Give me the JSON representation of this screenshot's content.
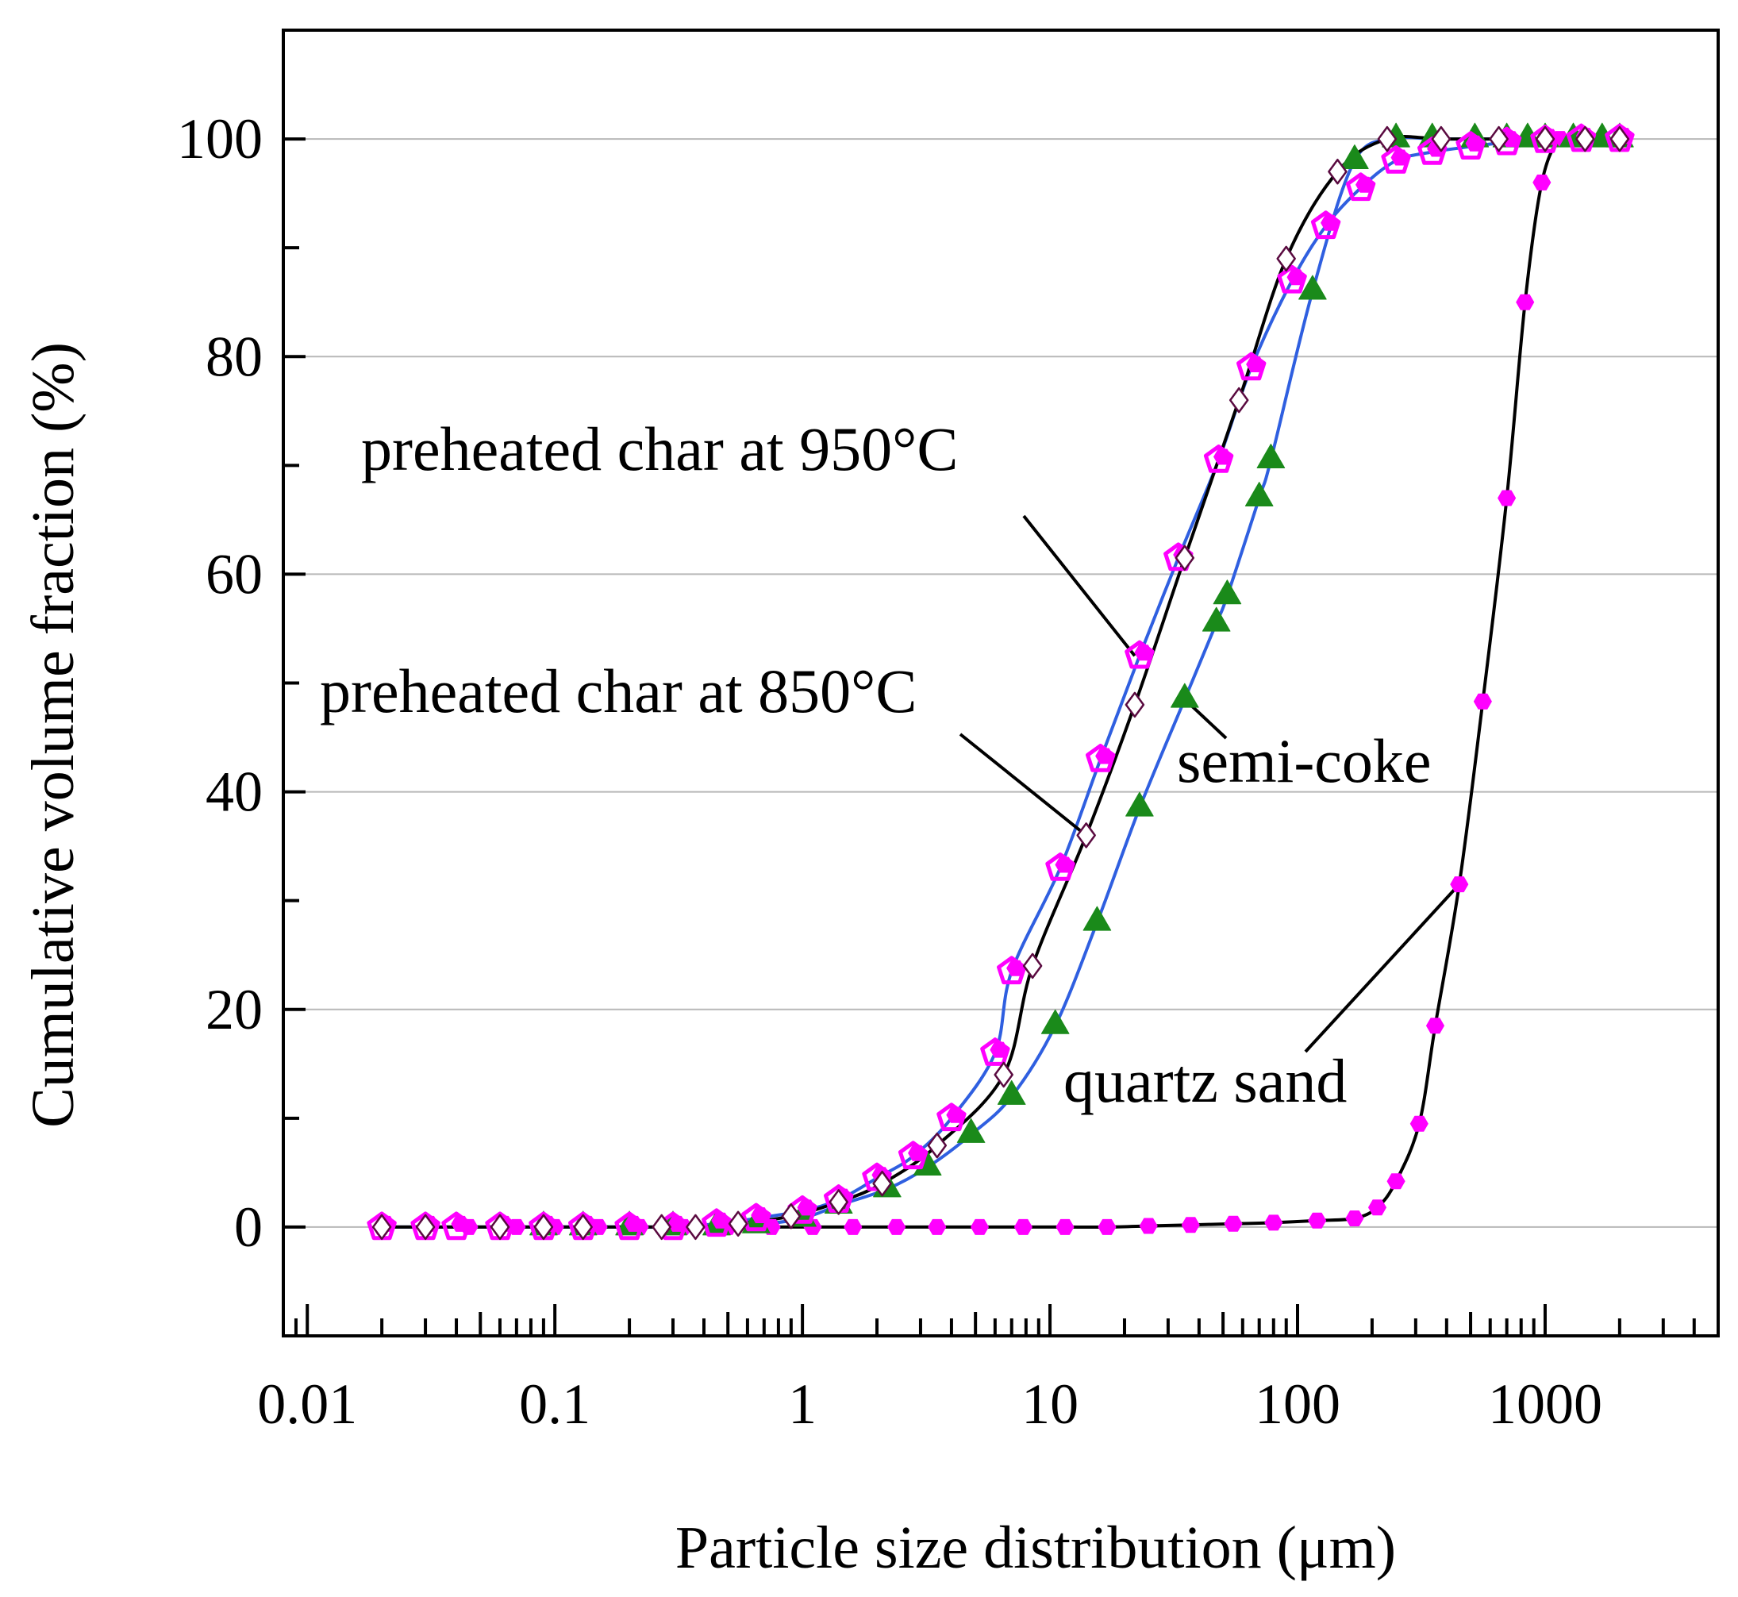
{
  "chart_data": {
    "type": "line",
    "title": "",
    "xlabel": "Particle size distribution (μm)",
    "ylabel": "Cumulative volume fraction (%)",
    "x_scale": "log",
    "xlim": [
      0.008,
      5000
    ],
    "ylim": [
      -10,
      110
    ],
    "x_ticks": [
      0.01,
      0.1,
      1,
      10,
      100,
      1000
    ],
    "x_tick_labels": [
      "0.01",
      "0.1",
      "1",
      "10",
      "100",
      "1000"
    ],
    "y_ticks": [
      0,
      20,
      40,
      60,
      80,
      100
    ],
    "y_tick_labels": [
      "0",
      "20",
      "40",
      "60",
      "80",
      "100"
    ],
    "grid": "horizontal",
    "annotations": [
      {
        "text": "preheated char at 950°C",
        "series_index": 0
      },
      {
        "text": "preheated char at 850°C",
        "series_index": 1
      },
      {
        "text": "semi-coke",
        "series_index": 2
      },
      {
        "text": "quartz sand",
        "series_index": 3
      }
    ],
    "series": [
      {
        "line_color": "#2f5fe0",
        "marker": "pentagon-open",
        "marker_color": "#ff00ff",
        "x": [
          0.02,
          0.03,
          0.04,
          0.06,
          0.09,
          0.13,
          0.2,
          0.3,
          0.45,
          0.65,
          1.0,
          1.4,
          2.0,
          2.8,
          4.0,
          6.0,
          7.0,
          11,
          16,
          23,
          33,
          48,
          65,
          95,
          130,
          180,
          250,
          350,
          500,
          700,
          1000,
          1400,
          2000
        ],
        "y": [
          0,
          0,
          0,
          0,
          0,
          0,
          0,
          0,
          0.3,
          0.8,
          1.5,
          2.5,
          4.5,
          6.5,
          10,
          16,
          23.5,
          33,
          43,
          52.5,
          61.5,
          70.5,
          79,
          87,
          92,
          95.5,
          98,
          98.8,
          99.3,
          99.7,
          99.9,
          100,
          100
        ]
      },
      {
        "line_color": "#000000",
        "marker": "diamond-open",
        "marker_color": "#5a0a40",
        "x": [
          0.02,
          0.03,
          0.06,
          0.09,
          0.13,
          0.27,
          0.37,
          0.55,
          0.9,
          1.4,
          2.1,
          3.5,
          6.5,
          8.5,
          14,
          22,
          35,
          58,
          90,
          145,
          230,
          380,
          650,
          1000,
          1450,
          2000
        ],
        "y": [
          0,
          0,
          0,
          0,
          0,
          0,
          0,
          0.3,
          1,
          2.3,
          4,
          7.5,
          14,
          24,
          36,
          48,
          61.5,
          76,
          89,
          97,
          100,
          100,
          100,
          100,
          100,
          100
        ]
      },
      {
        "line_color": "#2f5fe0",
        "marker": "triangle-filled",
        "marker_color": "#1a8a1a",
        "x": [
          0.09,
          0.13,
          0.2,
          0.3,
          0.45,
          0.65,
          1.0,
          1.4,
          2.2,
          3.2,
          4.8,
          7.0,
          10.5,
          15.5,
          23,
          35,
          47,
          52,
          70,
          78,
          115,
          170,
          250,
          350,
          520,
          700,
          850,
          1000,
          1300,
          1700,
          2000
        ],
        "y": [
          0,
          0,
          0,
          0,
          0,
          0.2,
          0.8,
          2,
          3.5,
          5.5,
          8.5,
          12,
          18.5,
          28,
          38.5,
          48.5,
          55.5,
          58,
          67,
          70.5,
          86,
          98,
          100,
          100,
          100,
          100,
          100,
          100,
          100,
          100,
          100
        ]
      },
      {
        "line_color": "#000000",
        "marker": "hexagon-filled",
        "marker_color": "#ff00ff",
        "x": [
          0.02,
          0.03,
          0.045,
          0.07,
          0.1,
          0.15,
          0.22,
          0.33,
          0.5,
          0.75,
          1.1,
          1.6,
          2.4,
          3.5,
          5.2,
          7.8,
          11.5,
          17,
          25,
          37,
          55,
          80,
          120,
          170,
          210,
          250,
          310,
          360,
          450,
          560,
          700,
          830,
          970,
          1150,
          1400,
          2000
        ],
        "y": [
          0,
          0,
          0,
          0,
          0,
          0,
          0,
          0,
          0,
          0,
          0,
          0,
          0,
          0,
          0,
          0,
          0,
          0,
          0.1,
          0.2,
          0.3,
          0.4,
          0.6,
          0.8,
          1.8,
          4.2,
          9.5,
          18.5,
          31.5,
          48.3,
          67,
          85,
          96,
          100,
          100,
          100
        ]
      }
    ]
  }
}
